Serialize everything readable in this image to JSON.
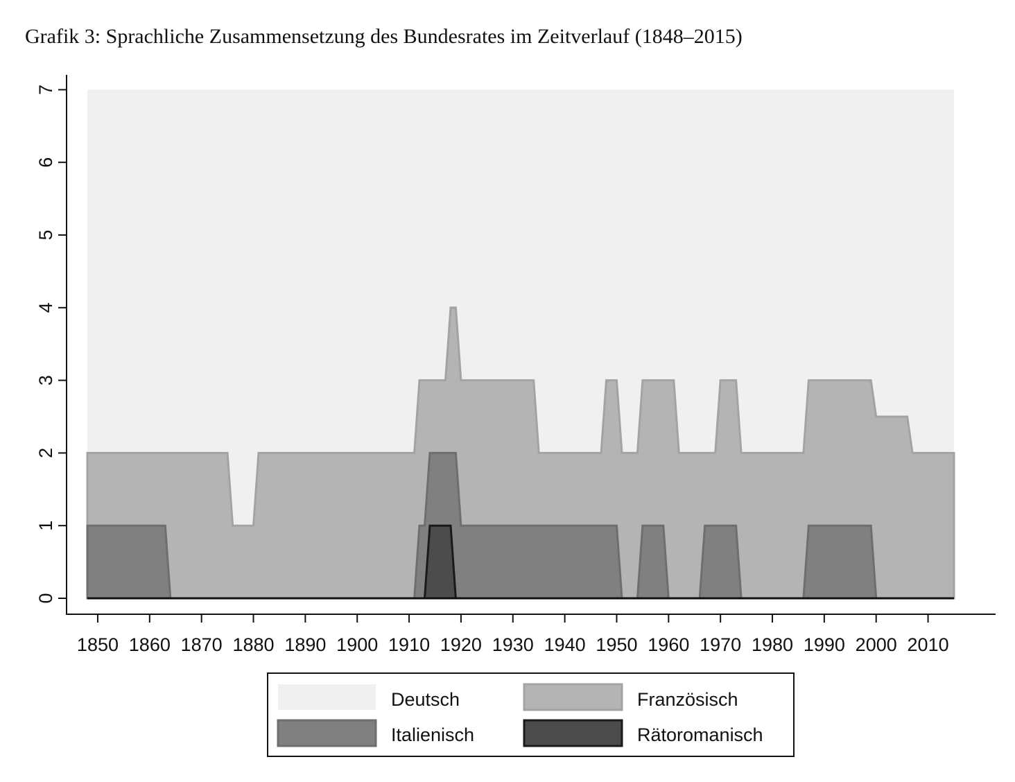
{
  "title": "Grafik 3: Sprachliche Zusammensetzung des Bundesrates im Zeitverlauf (1848–2015)",
  "chart_data": {
    "type": "area",
    "title": "Grafik 3: Sprachliche Zusammensetzung des Bundesrates im Zeitverlauf (1848–2015)",
    "xlabel": "",
    "ylabel": "",
    "xlim": [
      1848,
      2015
    ],
    "ylim": [
      0,
      7
    ],
    "x_ticks": [
      1850,
      1860,
      1870,
      1880,
      1890,
      1900,
      1910,
      1920,
      1930,
      1940,
      1950,
      1960,
      1970,
      1980,
      1990,
      2000,
      2010
    ],
    "y_ticks": [
      0,
      1,
      2,
      3,
      4,
      5,
      6,
      7
    ],
    "stacked": true,
    "legend_position": "bottom",
    "grid": false,
    "series": [
      {
        "name": "Deutsch",
        "color": "#f1f0ef",
        "stroke": "#f1f0ef",
        "top": [
          [
            1848,
            7
          ],
          [
            2015,
            7
          ]
        ]
      },
      {
        "name": "Französisch",
        "color": "#b4b4b3",
        "stroke": "#a3a3a2",
        "top": [
          [
            1848,
            2
          ],
          [
            1875,
            2
          ],
          [
            1876,
            1
          ],
          [
            1880,
            1
          ],
          [
            1881,
            2
          ],
          [
            1911,
            2
          ],
          [
            1912,
            3
          ],
          [
            1917,
            3
          ],
          [
            1918,
            4
          ],
          [
            1919,
            4
          ],
          [
            1920,
            3
          ],
          [
            1934,
            3
          ],
          [
            1935,
            2
          ],
          [
            1947,
            2
          ],
          [
            1948,
            3
          ],
          [
            1950,
            3
          ],
          [
            1951,
            2
          ],
          [
            1954,
            2
          ],
          [
            1955,
            3
          ],
          [
            1961,
            3
          ],
          [
            1962,
            2
          ],
          [
            1969,
            2
          ],
          [
            1970,
            3
          ],
          [
            1973,
            3
          ],
          [
            1974,
            2
          ],
          [
            1986,
            2
          ],
          [
            1987,
            3
          ],
          [
            1999,
            3
          ],
          [
            2000,
            2.5
          ],
          [
            2006,
            2.5
          ],
          [
            2007,
            2
          ],
          [
            2015,
            2
          ]
        ]
      },
      {
        "name": "Italienisch",
        "color": "#808080",
        "stroke": "#6e6e6e",
        "top": [
          [
            1848,
            1
          ],
          [
            1863,
            1
          ],
          [
            1864,
            0
          ],
          [
            1911,
            0
          ],
          [
            1912,
            1
          ],
          [
            1913,
            1
          ],
          [
            1914,
            2
          ],
          [
            1919,
            2
          ],
          [
            1920,
            1
          ],
          [
            1950,
            1
          ],
          [
            1951,
            0
          ],
          [
            1954,
            0
          ],
          [
            1955,
            1
          ],
          [
            1959,
            1
          ],
          [
            1960,
            0
          ],
          [
            1966,
            0
          ],
          [
            1967,
            1
          ],
          [
            1973,
            1
          ],
          [
            1974,
            0
          ],
          [
            1986,
            0
          ],
          [
            1987,
            1
          ],
          [
            1999,
            1
          ],
          [
            2000,
            0
          ],
          [
            2015,
            0
          ]
        ]
      },
      {
        "name": "Rätoromanisch",
        "color": "#4c4c4c",
        "stroke": "#1a1a1a",
        "top": [
          [
            1848,
            0
          ],
          [
            1913,
            0
          ],
          [
            1914,
            1
          ],
          [
            1918,
            1
          ],
          [
            1919,
            0
          ],
          [
            2015,
            0
          ]
        ]
      }
    ]
  },
  "legend": {
    "items": [
      {
        "label": "Deutsch",
        "color": "#f1f0ef",
        "stroke": "#f1f0ef"
      },
      {
        "label": "Französisch",
        "color": "#b4b4b3",
        "stroke": "#a3a3a2"
      },
      {
        "label": "Italienisch",
        "color": "#808080",
        "stroke": "#6e6e6e"
      },
      {
        "label": "Rätoromanisch",
        "color": "#4c4c4c",
        "stroke": "#1a1a1a"
      }
    ]
  }
}
